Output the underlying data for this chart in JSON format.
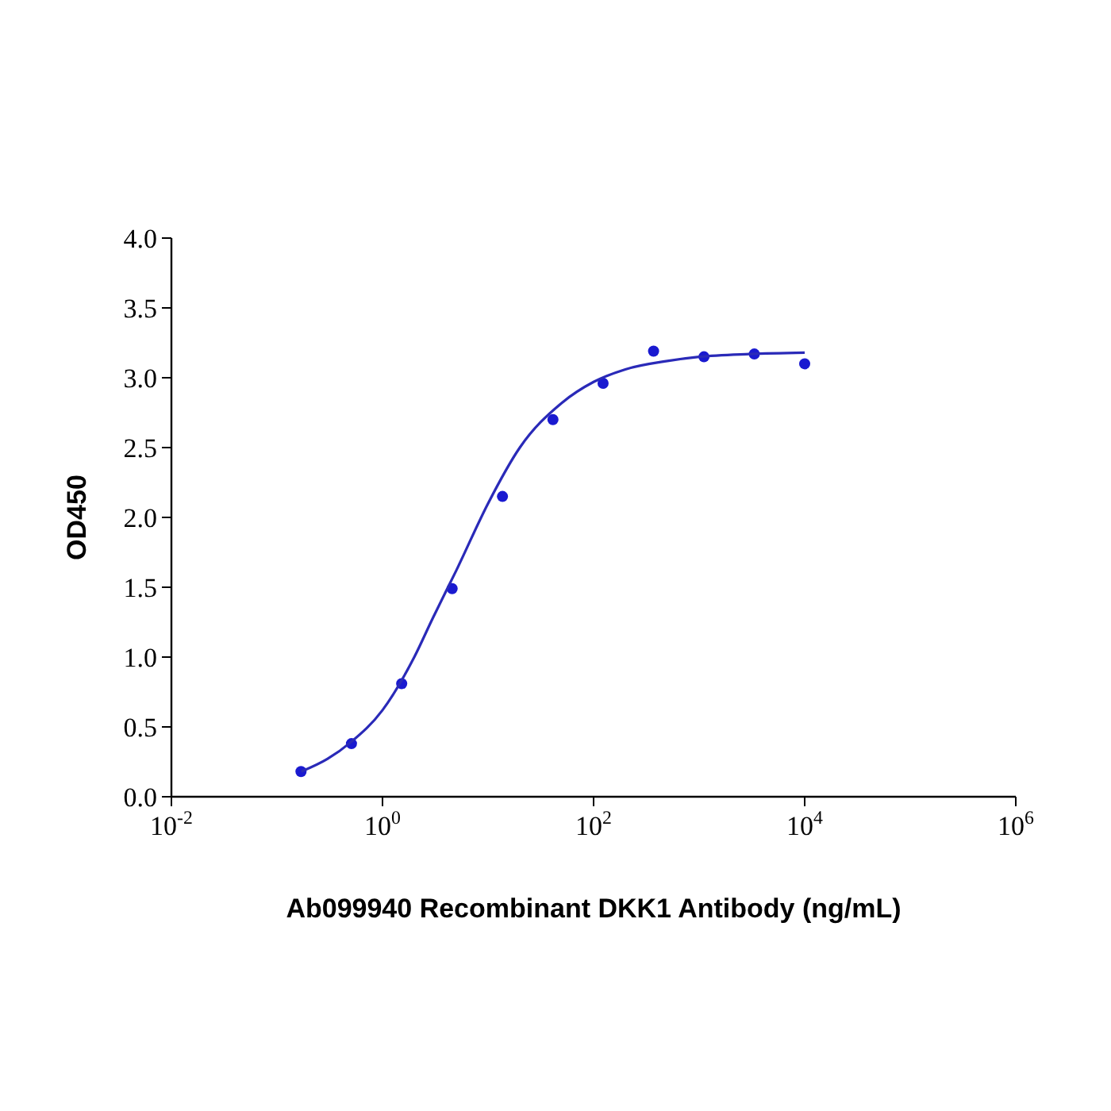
{
  "chart_data": {
    "type": "scatter",
    "xlabel": "Ab099940 Recombinant DKK1 Antibody (ng/mL)",
    "ylabel": "OD450",
    "log": "x",
    "xlim": [
      0.01,
      1000000
    ],
    "xticks": [
      {
        "value": 0.01,
        "label": "10$^{-2}$"
      },
      {
        "value": 1,
        "label": "10$^{0}$"
      },
      {
        "value": 100,
        "label": "10$^{2}$"
      },
      {
        "value": 10000,
        "label": "10$^{4}$"
      },
      {
        "value": 1000000,
        "label": "10$^{6}$"
      }
    ],
    "ylim": [
      0,
      4
    ],
    "yticks": [
      {
        "value": 0,
        "label": "0.0"
      },
      {
        "value": 0.5,
        "label": "0.5"
      },
      {
        "value": 1,
        "label": "1.0"
      },
      {
        "value": 1.5,
        "label": "1.5"
      },
      {
        "value": 2,
        "label": "2.0"
      },
      {
        "value": 2.5,
        "label": "2.5"
      },
      {
        "value": 3,
        "label": "3.0"
      },
      {
        "value": 3.5,
        "label": "3.5"
      },
      {
        "value": 4,
        "label": "4.0"
      }
    ],
    "grid": false,
    "series": [
      {
        "color": "#1a1ad0",
        "marker": "circle",
        "x": [
          0.169,
          0.508,
          1.52,
          4.57,
          13.7,
          41.2,
          123,
          370,
          1111,
          3333,
          10000
        ],
        "values": [
          0.18,
          0.38,
          0.81,
          1.49,
          2.15,
          2.7,
          2.96,
          3.19,
          3.15,
          3.17,
          3.1
        ]
      },
      {
        "type": "line",
        "color": "#2a2ab8",
        "marker": "none",
        "line_style": "solid",
        "x": [
          0.17,
          0.3,
          0.5,
          1,
          2,
          3,
          5,
          10,
          20,
          50,
          100,
          200,
          500,
          1000,
          3000,
          10000
        ],
        "values": [
          0.18,
          0.27,
          0.39,
          0.62,
          1.0,
          1.28,
          1.62,
          2.1,
          2.5,
          2.82,
          2.97,
          3.06,
          3.12,
          3.15,
          3.17,
          3.18
        ]
      }
    ]
  }
}
